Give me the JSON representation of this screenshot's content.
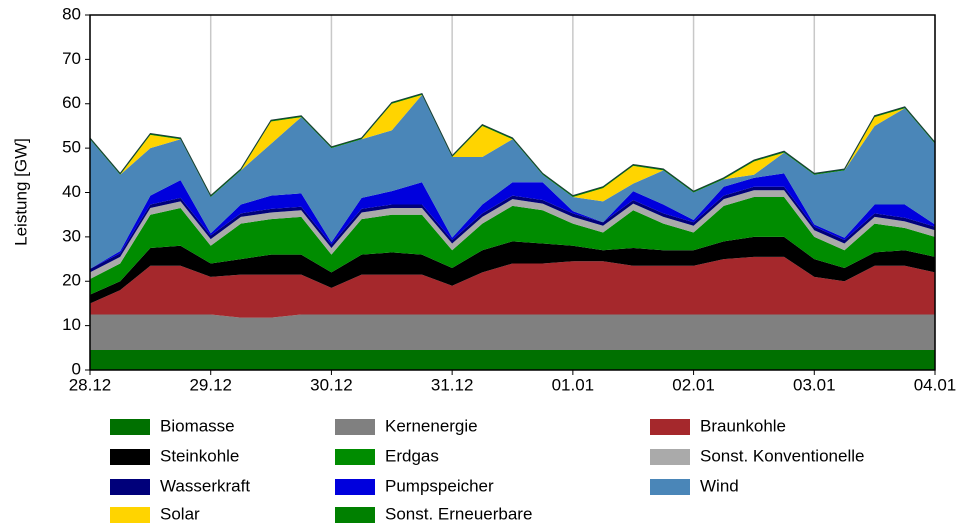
{
  "chart_data": {
    "type": "stacked-area",
    "y_label": "Leistung [GW]",
    "categories": [
      "28.12",
      null,
      null,
      null,
      "29.12",
      null,
      null,
      null,
      "30.12",
      null,
      null,
      null,
      "31.12",
      null,
      null,
      null,
      "01.01",
      null,
      null,
      null,
      "02.01",
      null,
      null,
      null,
      "03.01",
      null,
      null,
      null,
      "04.01"
    ],
    "ylim": [
      0,
      80
    ],
    "yticks": [
      0,
      10,
      20,
      30,
      40,
      50,
      60,
      70,
      80
    ],
    "grid": "x",
    "series": [
      {
        "name": "Biomasse",
        "color": "#007000",
        "values": [
          4.5,
          4.5,
          4.5,
          4.5,
          4.5,
          4.5,
          4.5,
          4.5,
          4.5,
          4.5,
          4.5,
          4.5,
          4.5,
          4.5,
          4.5,
          4.5,
          4.5,
          4.5,
          4.5,
          4.5,
          4.5,
          4.5,
          4.5,
          4.5,
          4.5,
          4.5,
          4.5,
          4.5,
          4.5
        ]
      },
      {
        "name": "Kernenergie",
        "color": "#808080",
        "values": [
          8,
          8,
          8,
          8,
          8,
          7.3,
          7.3,
          8,
          8,
          8,
          8,
          8,
          8,
          8,
          8,
          8,
          8,
          8,
          8,
          8,
          8,
          8,
          8,
          8,
          8,
          8,
          8,
          8,
          8
        ]
      },
      {
        "name": "Braunkohle",
        "color": "#a5282c",
        "values": [
          2.5,
          5.5,
          11,
          11,
          8.5,
          9.7,
          9.7,
          9,
          6,
          9,
          9,
          9,
          6.5,
          9.5,
          11.5,
          11.5,
          12,
          12,
          11,
          11,
          11,
          12.5,
          13,
          13,
          8.5,
          7.5,
          11,
          11,
          9.5
        ]
      },
      {
        "name": "Steinkohle",
        "color": "#000000",
        "values": [
          2,
          2,
          4,
          4.5,
          3,
          3.5,
          4.5,
          4.5,
          3.5,
          4.5,
          5,
          4.5,
          4,
          5,
          5,
          4.5,
          3.5,
          2.5,
          4,
          3.5,
          3.5,
          4,
          4.5,
          4.5,
          4,
          3,
          3,
          3.5,
          3.5
        ]
      },
      {
        "name": "Erdgas",
        "color": "#008c00",
        "values": [
          3.5,
          4,
          7.5,
          8.5,
          4,
          8,
          8,
          8.5,
          4,
          8,
          8.5,
          9,
          4,
          6,
          8,
          7.5,
          5,
          4,
          8.5,
          6,
          4,
          8,
          9,
          9,
          5,
          4,
          6.5,
          5,
          4.5
        ]
      },
      {
        "name": "Sonst. Konventionelle",
        "color": "#aaaaaa",
        "values": [
          1.5,
          1.5,
          1.5,
          1.5,
          1.5,
          1.5,
          1.5,
          1.5,
          1.5,
          1.5,
          1.5,
          1.5,
          1.5,
          1.5,
          1.5,
          1.5,
          1.5,
          1.5,
          1.5,
          1.5,
          1.5,
          1.5,
          1.5,
          1.5,
          1.5,
          1.5,
          1.5,
          1.5,
          1.5
        ]
      },
      {
        "name": "Wasserkraft",
        "color": "#00007a",
        "values": [
          0.8,
          0.8,
          0.8,
          0.8,
          0.8,
          0.8,
          0.8,
          0.8,
          0.8,
          0.8,
          0.8,
          0.8,
          0.8,
          0.8,
          0.8,
          0.8,
          0.8,
          0.8,
          0.8,
          0.8,
          0.8,
          0.8,
          0.8,
          0.8,
          0.8,
          0.8,
          0.8,
          0.8,
          0.8
        ]
      },
      {
        "name": "Pumpspeicher",
        "color": "#0000dd",
        "values": [
          0,
          0.5,
          2,
          4,
          0.5,
          2,
          3,
          3,
          0.5,
          2.5,
          3,
          5,
          0.5,
          2,
          3,
          4,
          0.5,
          0,
          2,
          2,
          0.5,
          2,
          2,
          3,
          0.5,
          0.5,
          2,
          3,
          0.5
        ]
      },
      {
        "name": "Wind",
        "color": "#4a86b8",
        "values": [
          29.2,
          17.2,
          10.7,
          9.2,
          8.2,
          7.7,
          11.7,
          17.2,
          21.2,
          13.2,
          13.7,
          19.7,
          18.2,
          10.7,
          9.7,
          1.7,
          3.2,
          4.7,
          1.7,
          7.7,
          6.2,
          1.7,
          0.7,
          4.7,
          11.2,
          15.2,
          17.7,
          21.7,
          18.2
        ]
      },
      {
        "name": "Solar",
        "color": "#ffd400",
        "values": [
          0,
          0,
          3,
          0,
          0,
          0,
          5,
          0,
          0,
          0,
          6,
          0,
          0,
          7,
          0,
          0,
          0,
          3,
          4,
          0,
          0,
          0,
          3,
          0,
          0,
          0,
          2,
          0,
          0
        ]
      },
      {
        "name": "Sonst. Erneuerbare",
        "color": "#008000",
        "values": [
          0.3,
          0.3,
          0.3,
          0.3,
          0.3,
          0.3,
          0.3,
          0.3,
          0.3,
          0.3,
          0.3,
          0.3,
          0.3,
          0.3,
          0.3,
          0.3,
          0.3,
          0.3,
          0.3,
          0.3,
          0.3,
          0.3,
          0.3,
          0.3,
          0.3,
          0.3,
          0.3,
          0.3,
          0.3
        ]
      }
    ]
  }
}
